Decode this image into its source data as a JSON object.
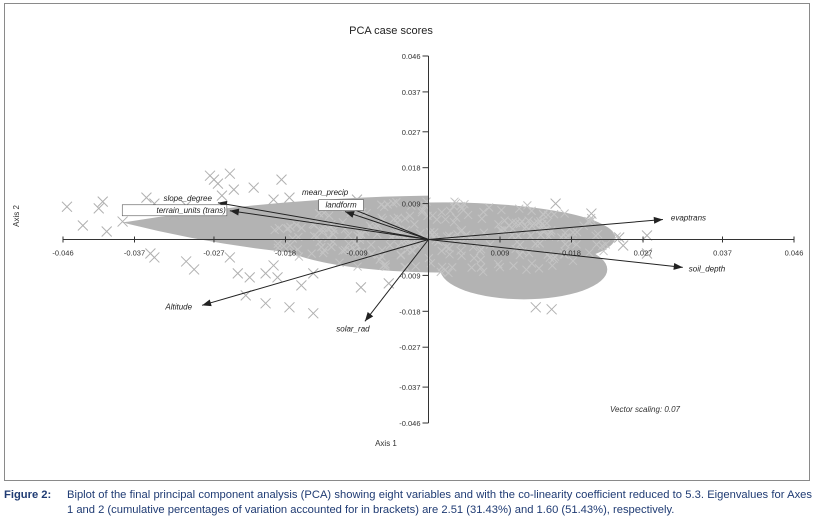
{
  "chart_data": {
    "type": "scatter",
    "title": "PCA case scores",
    "xlabel": "Axis 1",
    "ylabel": "Axis 2",
    "xlim": [
      -0.046,
      0.046
    ],
    "ylim": [
      -0.046,
      0.046
    ],
    "x_ticks": [
      -0.046,
      -0.037,
      -0.027,
      -0.018,
      -0.009,
      0.009,
      0.018,
      0.027,
      0.037,
      0.046
    ],
    "x_tick_labels": [
      "-0.046",
      "-0.037",
      "-0.027",
      "-0.018",
      "-0.009",
      "0.009",
      "0.018",
      "0.027",
      "0.037",
      "0.046"
    ],
    "y_ticks": [
      0.046,
      0.037,
      0.027,
      0.018,
      0.009,
      -0.009,
      -0.018,
      -0.027,
      -0.037,
      -0.046
    ],
    "y_tick_labels": [
      "0.046",
      "0.037",
      "0.027",
      "0.018",
      "0.009",
      "-0.009",
      "-0.018",
      "-0.027",
      "-0.037",
      "-0.046"
    ],
    "scatter_points": [
      [
        -0.0455,
        0.0082
      ],
      [
        -0.0435,
        0.0035
      ],
      [
        -0.0405,
        0.002
      ],
      [
        -0.0415,
        0.0078
      ],
      [
        -0.041,
        0.0095
      ],
      [
        -0.0385,
        0.0045
      ],
      [
        -0.0345,
        0.009
      ],
      [
        -0.0355,
        0.0105
      ],
      [
        -0.032,
        0.0062
      ],
      [
        -0.0305,
        0.0085
      ],
      [
        -0.035,
        -0.0035
      ],
      [
        -0.0345,
        -0.0045
      ],
      [
        -0.0305,
        -0.0055
      ],
      [
        -0.0295,
        -0.0075
      ],
      [
        -0.025,
        -0.0045
      ],
      [
        -0.024,
        -0.0085
      ],
      [
        -0.0225,
        -0.0095
      ],
      [
        -0.0205,
        -0.0085
      ],
      [
        -0.0195,
        -0.0065
      ],
      [
        -0.019,
        -0.0095
      ],
      [
        -0.0145,
        -0.0085
      ],
      [
        -0.0265,
        0.014
      ],
      [
        -0.027,
        0.015
      ],
      [
        -0.0275,
        0.016
      ],
      [
        -0.025,
        0.0165
      ],
      [
        -0.0245,
        0.0125
      ],
      [
        -0.026,
        0.011
      ],
      [
        -0.022,
        0.013
      ],
      [
        -0.0185,
        0.015
      ],
      [
        -0.0175,
        0.0105
      ],
      [
        -0.0195,
        0.01
      ],
      [
        -0.023,
        -0.014
      ],
      [
        -0.0205,
        -0.016
      ],
      [
        -0.0175,
        -0.017
      ],
      [
        -0.0145,
        -0.0185
      ],
      [
        -0.016,
        -0.0115
      ],
      [
        -0.0085,
        -0.012
      ],
      [
        0.0135,
        -0.017
      ],
      [
        0.0155,
        -0.0175
      ],
      [
        0.0275,
        -0.0035
      ],
      [
        0.0245,
        -0.0015
      ],
      [
        0.0275,
        0.001
      ],
      [
        0.024,
        0.0005
      ],
      [
        0.016,
        0.009
      ],
      [
        0.0205,
        0.0065
      ],
      [
        -0.009,
        0.01
      ],
      [
        -0.005,
        -0.011
      ]
    ],
    "cloud": {
      "core": {
        "center": [
          0.002,
          0.0005
        ],
        "radius_x": 0.0215,
        "radius_y": 0.0088
      },
      "upper_left_band": {
        "from": -0.0385,
        "to": 0.0,
        "upper_y": 0.0095,
        "lower_y": -0.001
      },
      "lower_right": {
        "center": [
          0.012,
          -0.0075
        ],
        "radius_x": 0.0105,
        "radius_y": 0.0075
      }
    },
    "vectors": [
      {
        "name": "slope_degree",
        "x": -0.0265,
        "y": 0.0092
      },
      {
        "name": "terrain_units (trans)",
        "x": -0.025,
        "y": 0.0072
      },
      {
        "name": "mean_precip",
        "x": -0.0115,
        "y": 0.0092
      },
      {
        "name": "landform",
        "x": -0.0105,
        "y": 0.007
      },
      {
        "name": "evaptrans",
        "x": 0.0295,
        "y": 0.005
      },
      {
        "name": "soil_depth",
        "x": 0.032,
        "y": -0.007
      },
      {
        "name": "Altitude",
        "x": -0.0285,
        "y": -0.0165
      },
      {
        "name": "solar_rad",
        "x": -0.008,
        "y": -0.0205
      }
    ],
    "annotation": "Vector scaling: 0.07",
    "colors": {
      "points": "#b3b3b3",
      "axes": "#333333",
      "vectors": "#222222"
    }
  },
  "caption": {
    "label": "Figure 2:",
    "text": "Biplot of the final principal component analysis (PCA) showing eight variables and with the co-linearity coefficient reduced to 5.3. Eigenvalues for Axes 1 and 2 (cumulative percentages of variation accounted for in brackets) are 2.51 (31.43%) and 1.60 (51.43%), respectively."
  }
}
